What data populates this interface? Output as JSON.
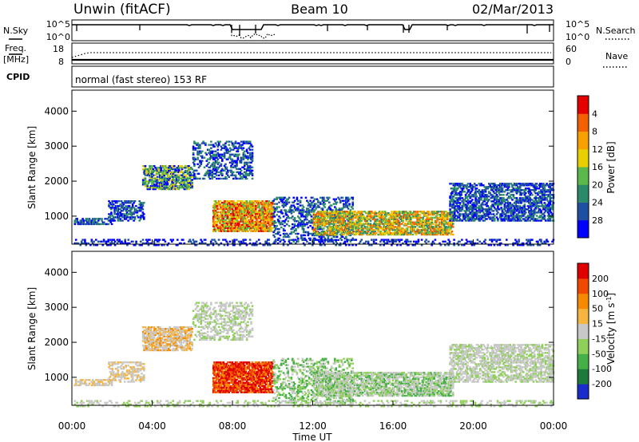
{
  "chart_data": [
    {
      "type": "line",
      "role": "noise",
      "left_label": "N.Sky",
      "right_label": "N.Search",
      "left_ticks": [
        "10^5",
        "10^0"
      ],
      "right_ticks": [
        "10^5",
        "10^0"
      ]
    },
    {
      "type": "line",
      "role": "freq",
      "left_label": "Freq.",
      "left_unit": "[MHz]",
      "right_label": "Nave",
      "left_ticks": [
        "18",
        "8"
      ],
      "right_ticks": [
        "60",
        "0"
      ]
    },
    {
      "type": "table",
      "role": "cpid",
      "label": "CPID",
      "value": "normal (fast stereo) 153 RF"
    },
    {
      "type": "heatmap",
      "role": "power",
      "ylabel": "Slant Range [km]",
      "yticks": [
        1000,
        2000,
        3000,
        4000
      ],
      "ylim": [
        200,
        4600
      ],
      "colorbar": {
        "label": "Power [dB]",
        "ticks": [
          "4",
          "8",
          "12",
          "16",
          "20",
          "24",
          "28"
        ],
        "colors": [
          "#0000ff",
          "#1f4fa0",
          "#2a8a6a",
          "#5cb84a",
          "#e8d000",
          "#f7a000",
          "#f26000",
          "#e50000"
        ]
      }
    },
    {
      "type": "heatmap",
      "role": "velocity",
      "ylabel": "Slant Range [km]",
      "yticks": [
        1000,
        2000,
        3000,
        4000
      ],
      "ylim": [
        200,
        4600
      ],
      "colorbar": {
        "label": "Velocity [m s",
        "label_sup": "-1",
        "label_tail": "]",
        "ticks": [
          "200",
          "100",
          "50",
          "15",
          "-15",
          "-50",
          "-100",
          "-200"
        ],
        "colors": [
          "#1a2ccc",
          "#1c7a3a",
          "#46b048",
          "#8fd05a",
          "#c8c8c8",
          "#f5b540",
          "#f58a00",
          "#f04a00",
          "#e00000"
        ]
      }
    }
  ],
  "header": {
    "site": "Unwin (fitACF)",
    "beam": "Beam 10",
    "date": "02/Mar/2013"
  },
  "xaxis": {
    "label": "Time UT",
    "ticks": [
      "00:00",
      "04:00",
      "08:00",
      "12:00",
      "16:00",
      "20:00",
      "00:00"
    ]
  }
}
